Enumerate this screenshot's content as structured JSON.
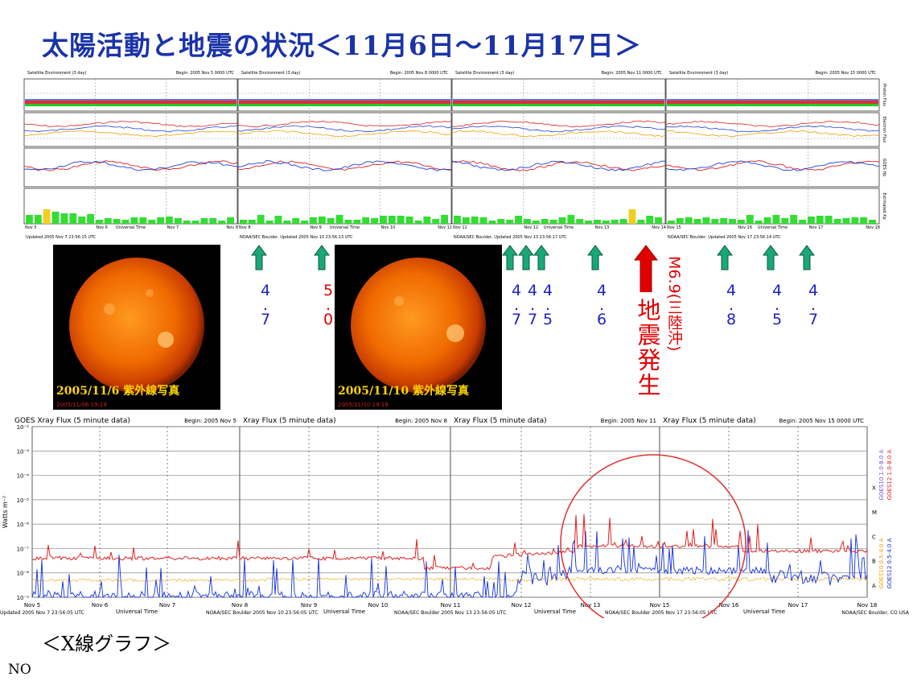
{
  "title": "太陽活動と地震の状況＜11月6日～11月17日＞",
  "satellite_panels": [
    {
      "header_left": "Satellite Environment (3 day)",
      "header_right": "Begin: 2005 Nov 5 0000 UTC",
      "days": [
        "Nov 5",
        "Nov 6",
        "Nov 7",
        "Nov 8"
      ],
      "footer": "Updated 2005 Nov 7 23:56:15 UTC"
    },
    {
      "header_left": "Satellite Environment (3 day)",
      "header_right": "Begin: 2005 Nov 8 0000 UTC",
      "days": [
        "Nov 8",
        "Nov 9",
        "Nov 10",
        "Nov 11"
      ],
      "footer": "NOAA/SEC Boulder, Updated 2005 Nov 10 23:56:13 UTC"
    },
    {
      "header_left": "Satellite Environment (3 day)",
      "header_right": "Begin: 2005 Nov 11 0000 UTC",
      "days": [
        "Nov 11",
        "Nov 12",
        "Nov 13",
        "Nov 14"
      ],
      "footer": "NOAA/SEC Boulder, Updated 2005 Nov 13 23:56:17 UTC"
    },
    {
      "header_left": "Satellite Environment (3 day)",
      "header_right": "Begin: 2005 Nov 15 0000 UTC",
      "days": [
        "Nov 15",
        "Nov 16",
        "Nov 17",
        "Nov 18"
      ],
      "footer": "NOAA/SEC Boulder, Updated 2005 Nov 17 23:56:14 UTC"
    }
  ],
  "sat_row_labels": [
    "Proton Flux",
    "Electron Flux",
    "GOES Hp",
    "Estimated Kp"
  ],
  "sat_axis_title": "Universal Time",
  "sun_photos": [
    {
      "caption": "2005/11/6  紫外線写真",
      "sub": "2005/11/06 19:19"
    },
    {
      "caption": "2005/11/10  紫外線写真",
      "sub": "2005/11/10 19:19"
    }
  ],
  "magnitudes": [
    {
      "value": "4.7",
      "color": "#2020c0"
    },
    {
      "value": "5.0",
      "color": "#e00000"
    },
    {
      "value": "4.7",
      "color": "#2020c0"
    },
    {
      "value": "4.7",
      "color": "#2020c0"
    },
    {
      "value": "4.5",
      "color": "#2020c0"
    },
    {
      "value": "4.6",
      "color": "#2020c0"
    },
    {
      "value": "4.8",
      "color": "#2020c0"
    },
    {
      "value": "4.5",
      "color": "#2020c0"
    },
    {
      "value": "4.7",
      "color": "#2020c0"
    }
  ],
  "earthquake": {
    "magnitude_text": "M6.9(三陸沖)",
    "label": "地震発生"
  },
  "chart_data": {
    "type": "line",
    "title": "GOES Xray Flux (5 minute data)",
    "panel_titles": [
      "GOES Xray Flux (5 minute data)",
      "Xray Flux (5 minute data)",
      "Xray Flux (5 minute data)",
      "Xray Flux (5 minute data)"
    ],
    "panel_begin": [
      "Begin: 2005 Nov 5",
      "Begin: 2005 Nov 8",
      "Begin: 2005 Nov 11",
      "Begin: 2005 Nov 15 0000 UTC"
    ],
    "ylabel": "Watts m⁻²",
    "xlabel": "Universal Time",
    "yscale": "log",
    "ylim": [
      1e-09,
      0.01
    ],
    "y_ticks": [
      "10⁻²",
      "10⁻³",
      "10⁻⁴",
      "10⁻⁵",
      "10⁻⁶",
      "10⁻⁷",
      "10⁻⁸",
      "10⁻⁹"
    ],
    "x_ticks": [
      "Nov 5",
      "Nov 6",
      "Nov 7",
      "Nov 8",
      "Nov 9",
      "Nov 10",
      "Nov 11",
      "Nov 12",
      "Nov 13",
      "Nov 15",
      "Nov 16",
      "Nov 17",
      "Nov 18"
    ],
    "right_labels": [
      "X",
      "M",
      "C",
      "B",
      "A"
    ],
    "legend": [
      "GOES10 1.0-8.0 A",
      "GOES12 1.0-8.0 A",
      "GOES10 0.5-4.0 A",
      "GOES12 0.5-4.0 A"
    ],
    "series_colors": {
      "long": "#e02020",
      "short_orange": "#f0a000",
      "short_blue": "#1030e0"
    },
    "footers": [
      "Updated 2005 Nov  7 23:56:05 UTC",
      "NOAA/SEC Boulder 2005 Nov 10 23:56:05 UTC",
      "NOAA/SEC Boulder 2005 Nov 13 23:56:05 UTC",
      "NOAA/SEC Boulder 2005 Nov 17 23:56:05 UTC",
      "NOAA/SEC Boulder, CO USA"
    ],
    "annotation": "circle around Nov 13 - Nov 16 activity"
  },
  "xray_label": "＜X線グラフ＞",
  "footer_text": "NO",
  "colors": {
    "title": "#1a33a8",
    "arrow_green": "#1aa878",
    "arrow_red": "#e00000",
    "bar_green": "#33dd33",
    "bar_yellow": "#f0d020"
  }
}
